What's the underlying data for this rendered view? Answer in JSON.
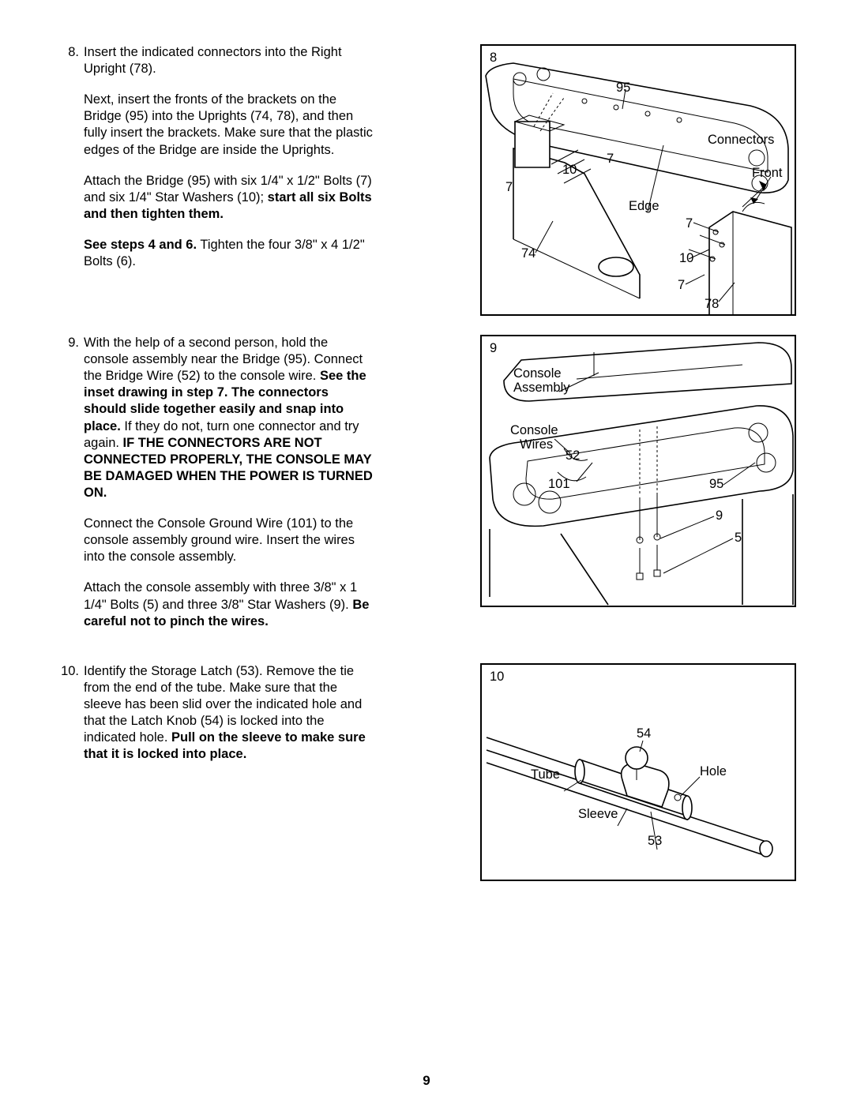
{
  "page_number": "9",
  "steps": [
    {
      "num": "8.",
      "paras": [
        {
          "runs": [
            {
              "t": "Insert the indicated connectors into the Right Upright (78)."
            }
          ]
        },
        {
          "runs": [
            {
              "t": "Next, insert the fronts of the brackets on the Bridge (95) into the Uprights (74, 78), and then fully insert the brackets. Make sure that the plastic edges of the Bridge are inside the Uprights."
            }
          ]
        },
        {
          "runs": [
            {
              "t": "Attach the Bridge (95) with six 1/4\" x 1/2\" Bolts (7) and six 1/4\" Star Washers (10); "
            },
            {
              "t": "start all six Bolts and then tighten them.",
              "b": true
            }
          ]
        },
        {
          "runs": [
            {
              "t": "See steps 4 and 6.",
              "b": true
            },
            {
              "t": " Tighten the four 3/8\" x 4 1/2\" Bolts (6)."
            }
          ]
        }
      ]
    },
    {
      "num": "9.",
      "paras": [
        {
          "runs": [
            {
              "t": "With the help of a second person, hold the console assembly near the Bridge (95). Connect the Bridge Wire (52) to the console wire. "
            },
            {
              "t": "See the inset drawing in step 7. The connectors should slide together easily and snap into place.",
              "b": true
            },
            {
              "t": " If they do not, turn one connector and try again. "
            },
            {
              "t": "IF THE CONNECTORS ARE NOT CONNECTED PROPERLY, THE CONSOLE MAY BE DAMAGED WHEN THE POWER IS TURNED ON.",
              "b": true
            }
          ]
        },
        {
          "runs": [
            {
              "t": "Connect the Console Ground Wire (101) to the console assembly ground wire. Insert the wires into the console assembly."
            }
          ]
        },
        {
          "runs": [
            {
              "t": "Attach the console assembly with three 3/8\" x 1 1/4\" Bolts (5) and three 3/8\" Star Washers (9). "
            },
            {
              "t": "Be careful not to pinch the wires.",
              "b": true
            }
          ]
        }
      ]
    },
    {
      "num": "10.",
      "paras": [
        {
          "runs": [
            {
              "t": "Identify the Storage Latch (53). Remove the tie from the end of the tube. Make sure that the sleeve has been slid over the indicated hole and that the Latch Knob (54) is locked into the indicated hole. "
            },
            {
              "t": "Pull on the sleeve to make sure that it is locked into place.",
              "b": true
            }
          ]
        }
      ]
    }
  ],
  "figures": {
    "f8": {
      "num": "8",
      "labels": {
        "l95": "95",
        "connectors": "Connectors",
        "front": "Front",
        "l7a": "7",
        "l10a": "10",
        "l7b": "7",
        "edge": "Edge",
        "l7c": "7",
        "l74": "74",
        "l10b": "10",
        "l7d": "7",
        "l78": "78"
      }
    },
    "f9": {
      "num": "9",
      "labels": {
        "console_asm": "Console",
        "console_asm2": "Assembly",
        "console_wires": "Console",
        "console_wires2": "Wires",
        "l52": "52",
        "l101": "101",
        "l95": "95",
        "l9": "9",
        "l5": "5"
      }
    },
    "f10": {
      "num": "10",
      "labels": {
        "l54": "54",
        "hole": "Hole",
        "tube": "Tube",
        "sleeve": "Sleeve",
        "l53": "53"
      }
    }
  }
}
